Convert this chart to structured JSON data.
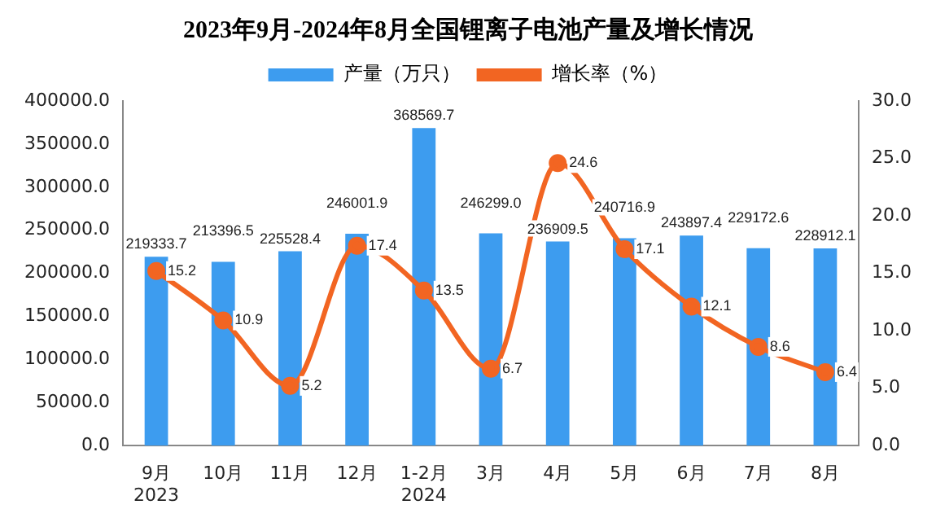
{
  "chart_data": {
    "type": "bar",
    "title": "2023年9月-2024年8月全国锂离子电池产量及增长情况",
    "categories": [
      "9月\n2023",
      "10月",
      "11月",
      "12月",
      "1-2月\n2024",
      "3月",
      "4月",
      "5月",
      "6月",
      "7月",
      "8月"
    ],
    "series": [
      {
        "name": "产量（万只）",
        "color": "#3d9cef",
        "values": [
          219333.7,
          213396.5,
          225528.4,
          246001.9,
          368569.7,
          246299,
          236909.5,
          240716.9,
          243897.4,
          229172.6,
          228912.1
        ],
        "value_labels": [
          "219333.7",
          "213396.5",
          "225528.4",
          "246001.9",
          "368569.7",
          "246299.0",
          "236909.5",
          "240716.9",
          "243897.4",
          "229172.6",
          "228912.1"
        ]
      },
      {
        "name": "增长率（%）",
        "type": "line",
        "axis": "y2",
        "color": "#f26522",
        "values": [
          15.2,
          10.9,
          5.2,
          17.4,
          13.5,
          6.7,
          24.6,
          17.1,
          12.1,
          8.6,
          6.4
        ],
        "value_labels": [
          "15.2",
          "10.9",
          "5.2",
          "17.4",
          "13.5",
          "6.7",
          "24.6",
          "17.1",
          "12.1",
          "8.6",
          "6.4"
        ]
      }
    ],
    "ylim": [
      0,
      400000
    ],
    "yticks": [
      {
        "value": 0,
        "label": "0.0"
      },
      {
        "value": 50000,
        "label": "50000.0"
      },
      {
        "value": 100000,
        "label": "100000.0"
      },
      {
        "value": 150000,
        "label": "150000.0"
      },
      {
        "value": 200000,
        "label": "200000.0"
      },
      {
        "value": 250000,
        "label": "250000.0"
      },
      {
        "value": 300000,
        "label": "300000.0"
      },
      {
        "value": 350000,
        "label": "350000.0"
      },
      {
        "value": 400000,
        "label": "400000.0"
      }
    ],
    "y2lim": [
      0,
      30
    ],
    "y2ticks": [
      {
        "value": 0,
        "label": "0.0"
      },
      {
        "value": 5,
        "label": "5.0"
      },
      {
        "value": 10,
        "label": "10.0"
      },
      {
        "value": 15,
        "label": "15.0"
      },
      {
        "value": 20,
        "label": "20.0"
      },
      {
        "value": 25,
        "label": "25.0"
      },
      {
        "value": 30,
        "label": "30.0"
      }
    ],
    "legend": "top",
    "grid": false,
    "marker": "circle",
    "line_style": "solid"
  }
}
